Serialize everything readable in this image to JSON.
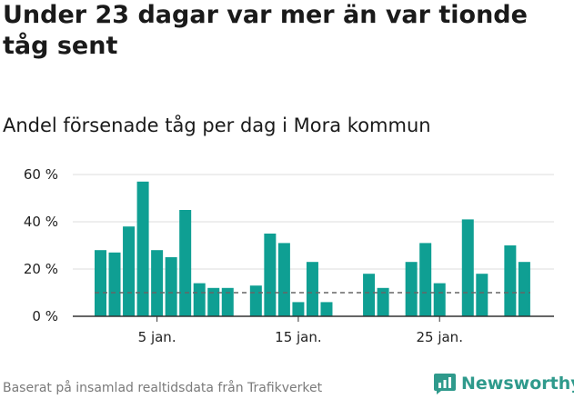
{
  "header": {
    "title": "Under 23 dagar var mer än var tionde tåg sent",
    "subtitle": "Andel försenade tåg per dag i Mora kommun"
  },
  "footer": {
    "source": "Baserat på insamlad realtidsdata från Trafikverket",
    "brand": "Newsworthy"
  },
  "colors": {
    "bar": "#0f9f93",
    "grid": "#dcdcdc",
    "axis": "#333333",
    "reference_line": "#666666",
    "brand": "#2f9a8c"
  },
  "chart_data": {
    "type": "bar",
    "x_unit": "day of January",
    "days": [
      1,
      2,
      3,
      4,
      5,
      6,
      7,
      8,
      9,
      10,
      11,
      12,
      13,
      14,
      15,
      16,
      17,
      18,
      19,
      20,
      21,
      22,
      23,
      24,
      25,
      26,
      27,
      28,
      29,
      30,
      31
    ],
    "values": [
      28,
      27,
      38,
      57,
      28,
      25,
      45,
      14,
      12,
      12,
      null,
      13,
      35,
      31,
      6,
      23,
      6,
      null,
      null,
      18,
      12,
      null,
      23,
      31,
      14,
      null,
      41,
      18,
      null,
      30,
      23
    ],
    "reference_value": 10,
    "ylim": [
      0,
      60
    ],
    "y_ticks": [
      0,
      20,
      40,
      60
    ],
    "y_tick_labels": [
      "0 %",
      "20 %",
      "40 %",
      "60 %"
    ],
    "x_ticks": [
      5,
      15,
      25
    ],
    "x_tick_labels": [
      "5 jan.",
      "15 jan.",
      "25 jan."
    ],
    "grid": true
  }
}
